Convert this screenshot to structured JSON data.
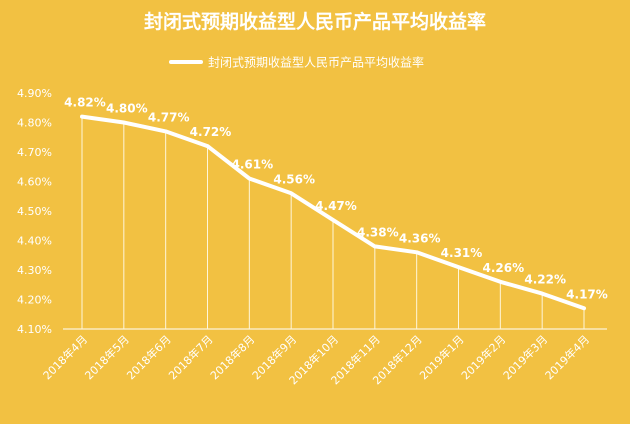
{
  "chart_data": {
    "type": "line",
    "title": "封闭式预期收益型人民币产品平均收益率",
    "legend": "封闭式预期收益型人民币产品平均收益率",
    "legend_position": "top",
    "series": [
      {
        "name": "封闭式预期收益型人民币产品平均收益率",
        "values": [
          4.82,
          4.8,
          4.77,
          4.72,
          4.61,
          4.56,
          4.47,
          4.38,
          4.36,
          4.31,
          4.26,
          4.22,
          4.17
        ],
        "labels": [
          "4.82%",
          "4.80%",
          "4.77%",
          "4.72%",
          "4.61%",
          "4.56%",
          "4.47%",
          "4.38%",
          "4.36%",
          "4.31%",
          "4.26%",
          "4.22%",
          "4.17%"
        ]
      }
    ],
    "categories": [
      "2018年4月",
      "2018年5月",
      "2018年6月",
      "2018年7月",
      "2018年8月",
      "2018年9月",
      "2018年10月",
      "2018年11月",
      "2018年12月",
      "2019年1月",
      "2019年2月",
      "2019年3月",
      "2019年4月"
    ],
    "y_ticks": [
      "4.10%",
      "4.20%",
      "4.30%",
      "4.40%",
      "4.50%",
      "4.60%",
      "4.70%",
      "4.80%",
      "4.90%"
    ],
    "ylim": [
      4.1,
      4.9
    ],
    "grid": false,
    "drop_lines": true,
    "colors": {
      "background": "#F2C142",
      "line": "#FFFFFF",
      "text": "#FFFFFF",
      "drop_line": "#FFF6DA"
    }
  }
}
